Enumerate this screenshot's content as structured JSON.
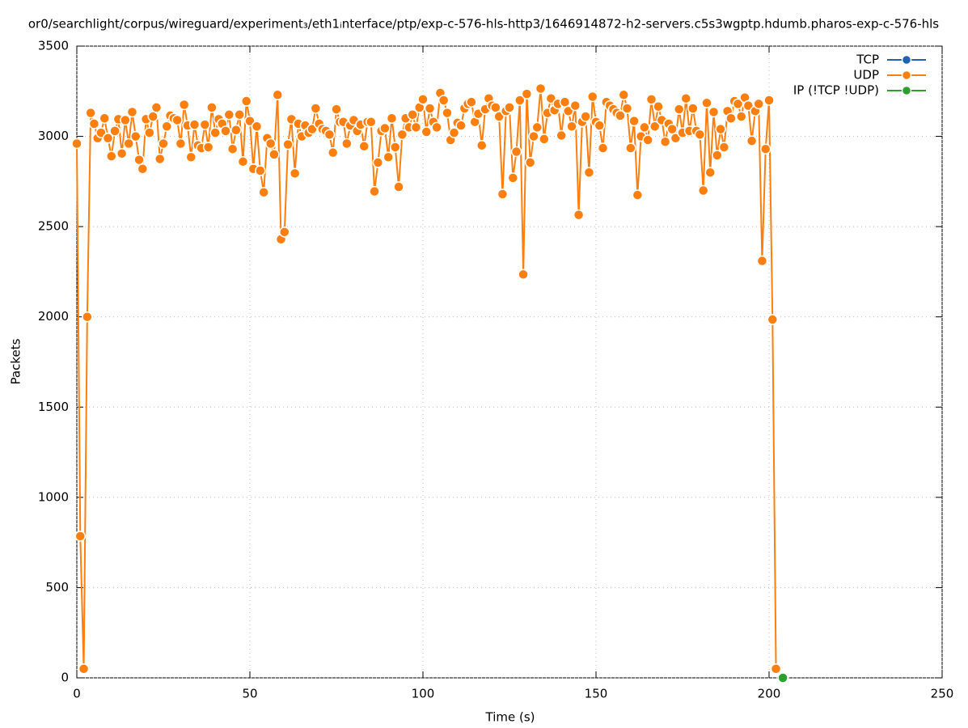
{
  "chart_data": {
    "type": "line",
    "title": "or0/searchlight/corpus/wireguard/experiment₃/eth1ᵢnterface/ptp/exp-c-576-hls-http3/1646914872-h2-servers.c5s3wgptp.hdumb.pharos-exp-c-576-hls",
    "xlabel": "Time (s)",
    "ylabel": "Packets",
    "xlim": [
      0,
      250
    ],
    "xticks": [
      0,
      50,
      100,
      150,
      200,
      250
    ],
    "ylim": [
      0,
      3500
    ],
    "yticks": [
      0,
      500,
      1000,
      1500,
      2000,
      2500,
      3000,
      3500
    ],
    "grid": true,
    "legend": "upper right",
    "series": [
      {
        "name": "TCP",
        "color": "#1f63b0",
        "x": [],
        "values": []
      },
      {
        "name": "UDP",
        "color": "#ff7f0e",
        "x": [
          0,
          1,
          2,
          3,
          4,
          5,
          6,
          7,
          8,
          9,
          10,
          11,
          12,
          13,
          14,
          15,
          16,
          17,
          18,
          19,
          20,
          21,
          22,
          23,
          24,
          25,
          26,
          27,
          28,
          29,
          30,
          31,
          32,
          33,
          34,
          35,
          36,
          37,
          38,
          39,
          40,
          41,
          42,
          43,
          44,
          45,
          46,
          47,
          48,
          49,
          50,
          51,
          52,
          53,
          54,
          55,
          56,
          57,
          58,
          59,
          60,
          61,
          62,
          63,
          64,
          65,
          66,
          67,
          68,
          69,
          70,
          71,
          72,
          73,
          74,
          75,
          76,
          77,
          78,
          79,
          80,
          81,
          82,
          83,
          84,
          85,
          86,
          87,
          88,
          89,
          90,
          91,
          92,
          93,
          94,
          95,
          96,
          97,
          98,
          99,
          100,
          101,
          102,
          103,
          104,
          105,
          106,
          107,
          108,
          109,
          110,
          111,
          112,
          113,
          114,
          115,
          116,
          117,
          118,
          119,
          120,
          121,
          122,
          123,
          124,
          125,
          126,
          127,
          128,
          129,
          130,
          131,
          132,
          133,
          134,
          135,
          136,
          137,
          138,
          139,
          140,
          141,
          142,
          143,
          144,
          145,
          146,
          147,
          148,
          149,
          150,
          151,
          152,
          153,
          154,
          155,
          156,
          157,
          158,
          159,
          160,
          161,
          162,
          163,
          164,
          165,
          166,
          167,
          168,
          169,
          170,
          171,
          172,
          173,
          174,
          175,
          176,
          177,
          178,
          179,
          180,
          181,
          182,
          183,
          184,
          185,
          186,
          187,
          188,
          189,
          190,
          191,
          192,
          193,
          194,
          195,
          196,
          197,
          198,
          199,
          200,
          201,
          202
        ],
        "values": [
          2960,
          785,
          50,
          2000,
          3130,
          3070,
          2990,
          3020,
          3100,
          2990,
          2890,
          3030,
          3095,
          2905,
          3090,
          2960,
          3135,
          3000,
          2870,
          2820,
          3095,
          3020,
          3110,
          3160,
          2875,
          2960,
          3055,
          3115,
          3100,
          3090,
          2960,
          3175,
          3060,
          2885,
          3065,
          2950,
          2935,
          3065,
          2940,
          3160,
          3020,
          3095,
          3070,
          3030,
          3120,
          2930,
          3035,
          3120,
          2860,
          3195,
          3085,
          2820,
          3055,
          2810,
          2690,
          2990,
          2960,
          2900,
          3230,
          2430,
          2470,
          2955,
          3095,
          2795,
          3070,
          3000,
          3060,
          3020,
          3040,
          3155,
          3070,
          3040,
          3030,
          3010,
          2910,
          3150,
          3080,
          3080,
          2960,
          3060,
          3090,
          3030,
          3065,
          2945,
          3080,
          3080,
          2695,
          2855,
          3030,
          3045,
          2885,
          3100,
          2940,
          2720,
          3010,
          3100,
          3050,
          3120,
          3050,
          3160,
          3205,
          3025,
          3155,
          3080,
          3050,
          3240,
          3200,
          3130,
          2980,
          3020,
          3075,
          3060,
          3155,
          3180,
          3190,
          3080,
          3125,
          2950,
          3150,
          3210,
          3170,
          3160,
          3110,
          2680,
          3140,
          3160,
          2770,
          2915,
          3200,
          2235,
          3235,
          2855,
          3000,
          3050,
          3265,
          2985,
          3130,
          3210,
          3145,
          3180,
          3005,
          3190,
          3140,
          3055,
          3170,
          2565,
          3080,
          3110,
          2800,
          3220,
          3080,
          3060,
          2935,
          3190,
          3170,
          3150,
          3130,
          3115,
          3230,
          3155,
          2935,
          3085,
          2675,
          3000,
          3050,
          2980,
          3205,
          3055,
          3165,
          3090,
          2970,
          3070,
          3040,
          2990,
          3150,
          3020,
          3210,
          3030,
          3155,
          3030,
          3010,
          2700,
          3185,
          2800,
          3135,
          2895,
          3040,
          2940,
          3140,
          3100,
          3195,
          3180,
          3110,
          3215,
          3170,
          2975,
          3140,
          3180,
          2310,
          2930,
          3200,
          1985,
          50
        ]
      },
      {
        "name": "IP (!TCP  !UDP)",
        "color": "#2ca02c",
        "x": [
          204
        ],
        "values": [
          0
        ]
      }
    ]
  }
}
